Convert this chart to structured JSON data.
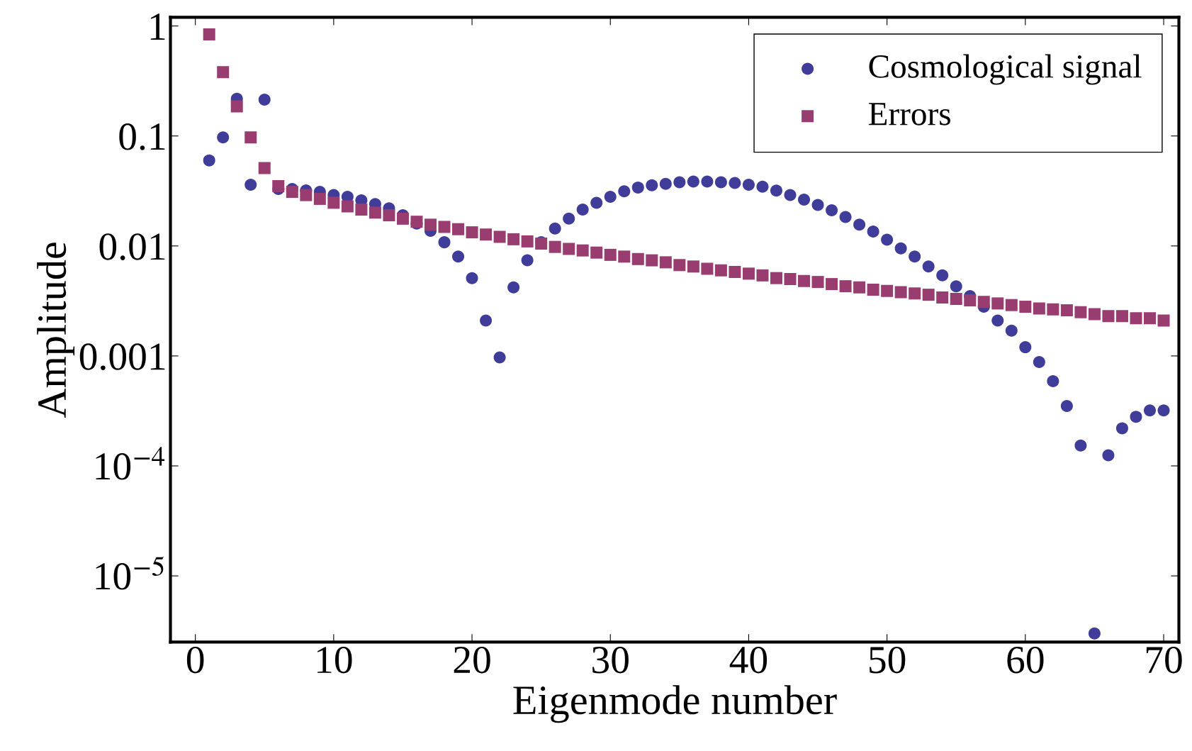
{
  "chart_data": {
    "type": "scatter",
    "xlabel": "Eigenmode number",
    "ylabel": "Amplitude",
    "log": "y",
    "legend": "top right",
    "grid": false,
    "xlim": [
      -1.8,
      71.1
    ],
    "xticks": [
      0,
      10,
      20,
      30,
      40,
      50,
      60,
      70
    ],
    "ylim": [
      2.5e-06,
      1.2
    ],
    "yticks": [
      {
        "value": 1e-05,
        "label": "10$^{−5}$"
      },
      {
        "value": 0.0001,
        "label": "10$^{−4}$"
      },
      0.001,
      0.01,
      0.1,
      1
    ],
    "x": [
      1,
      2,
      3,
      4,
      5,
      6,
      7,
      8,
      9,
      10,
      11,
      12,
      13,
      14,
      15,
      16,
      17,
      18,
      19,
      20,
      21,
      22,
      23,
      24,
      25,
      26,
      27,
      28,
      29,
      30,
      31,
      32,
      33,
      34,
      35,
      36,
      37,
      38,
      39,
      40,
      41,
      42,
      43,
      44,
      45,
      46,
      47,
      48,
      49,
      50,
      51,
      52,
      53,
      54,
      55,
      56,
      57,
      58,
      59,
      60,
      61,
      62,
      63,
      64,
      65,
      66,
      67,
      68,
      69,
      70
    ],
    "series": [
      {
        "name": "Cosmological signal",
        "color": "#3f3d99",
        "marker": "circle",
        "values": [
          0.06,
          0.097,
          0.218,
          0.036,
          0.214,
          0.033,
          0.033,
          0.032,
          0.031,
          0.029,
          0.028,
          0.026,
          0.024,
          0.022,
          0.019,
          0.016,
          0.0137,
          0.0108,
          0.008,
          0.0051,
          0.0021,
          0.00097,
          0.0042,
          0.0074,
          0.0108,
          0.0144,
          0.0177,
          0.0214,
          0.0247,
          0.028,
          0.0314,
          0.034,
          0.0356,
          0.0367,
          0.038,
          0.0385,
          0.0385,
          0.038,
          0.0374,
          0.036,
          0.0346,
          0.0319,
          0.029,
          0.0264,
          0.0236,
          0.0211,
          0.0183,
          0.0156,
          0.0135,
          0.0114,
          0.0095,
          0.008,
          0.0065,
          0.0054,
          0.0043,
          0.0035,
          0.0028,
          0.0021,
          0.0017,
          0.0012,
          0.00088,
          0.00059,
          0.00035,
          0.000153,
          3e-06,
          0.000125,
          0.00022,
          0.00028,
          0.00032,
          0.00032
        ]
      },
      {
        "name": "Errors",
        "color": "#993d71",
        "marker": "square",
        "values": [
          0.84,
          0.38,
          0.186,
          0.097,
          0.051,
          0.035,
          0.031,
          0.029,
          0.0268,
          0.0247,
          0.0229,
          0.0214,
          0.0201,
          0.019,
          0.0177,
          0.0166,
          0.0156,
          0.0149,
          0.0142,
          0.0133,
          0.0127,
          0.0121,
          0.0115,
          0.011,
          0.0105,
          0.0098,
          0.0094,
          0.0091,
          0.0087,
          0.0083,
          0.008,
          0.0076,
          0.0074,
          0.0071,
          0.0067,
          0.0065,
          0.0062,
          0.006,
          0.0058,
          0.0056,
          0.0054,
          0.0051,
          0.005,
          0.0048,
          0.0047,
          0.0045,
          0.0043,
          0.0042,
          0.004,
          0.0039,
          0.0038,
          0.0037,
          0.0036,
          0.0034,
          0.0033,
          0.0032,
          0.0031,
          0.003,
          0.0029,
          0.0028,
          0.0027,
          0.00265,
          0.0026,
          0.0025,
          0.0024,
          0.0023,
          0.0023,
          0.0022,
          0.0022,
          0.0021
        ]
      }
    ]
  }
}
